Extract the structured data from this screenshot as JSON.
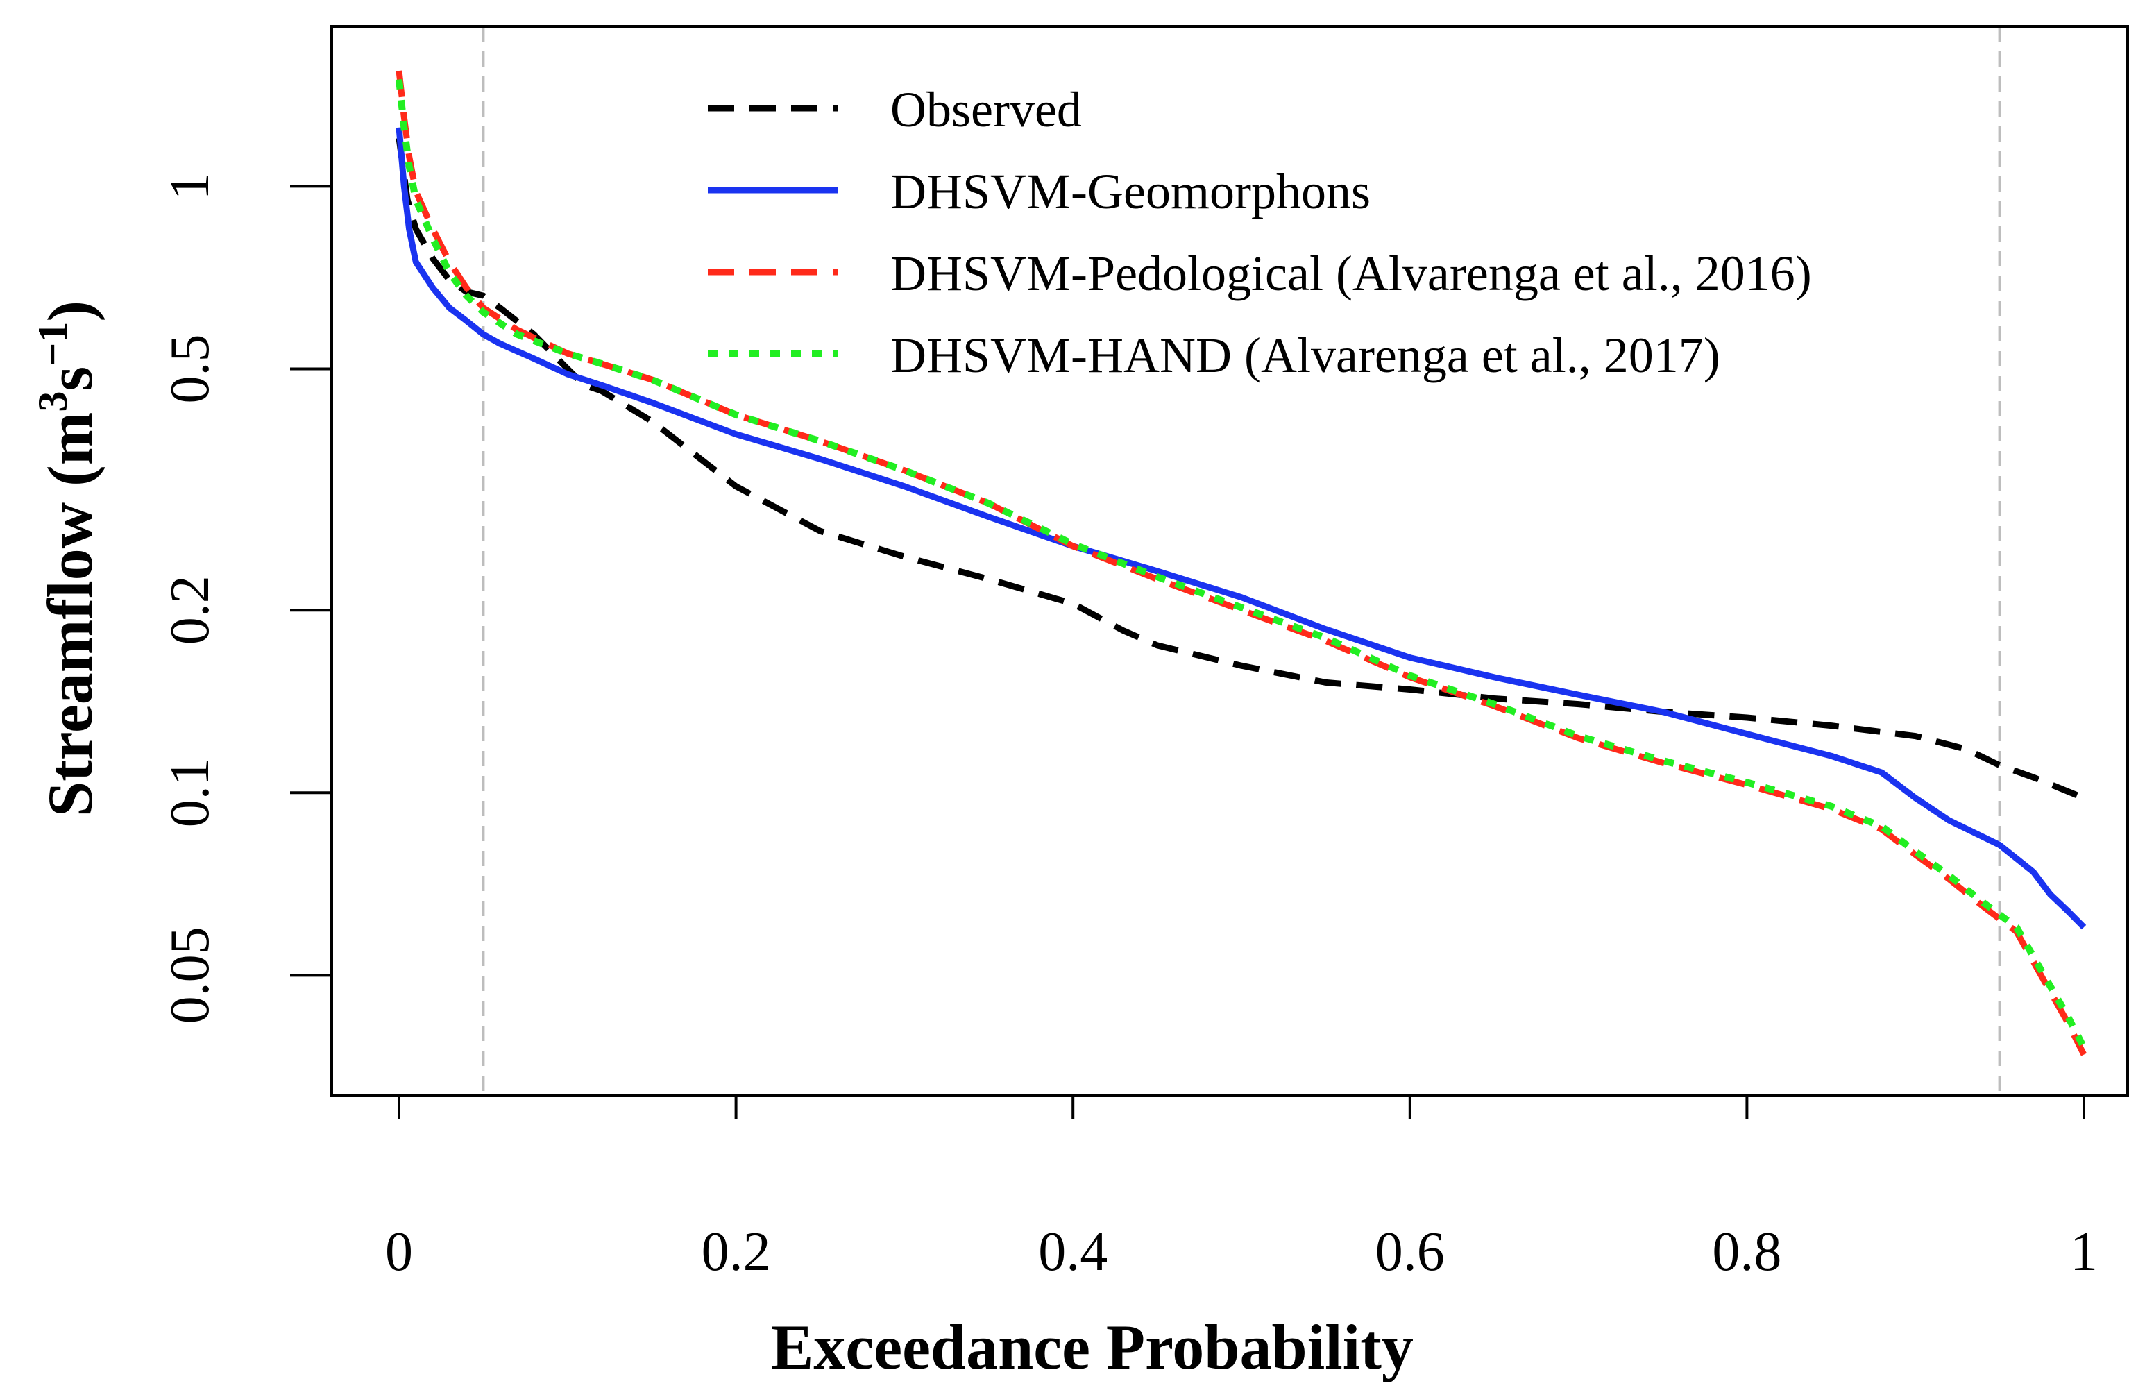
{
  "chart_data": {
    "type": "line",
    "title": "",
    "xlabel": "Exceedance Probability",
    "ylabel": {
      "main": "Streamflow (m",
      "sup1": "3",
      "mid": "s",
      "sup2": "−1",
      "end": ")"
    },
    "xlim": [
      0,
      1
    ],
    "ylim": [
      0.036,
      1.6
    ],
    "yscale": "log",
    "grid": false,
    "legend_position": "top-right",
    "xticks": [
      0,
      0.2,
      0.4,
      0.6,
      0.8,
      1
    ],
    "xtick_labels": [
      "0",
      "0.2",
      "0.4",
      "0.6",
      "0.8",
      "1"
    ],
    "yticks": [
      0.05,
      0.1,
      0.2,
      0.5,
      1
    ],
    "ytick_labels": [
      "0.05",
      "0.1",
      "0.2",
      "0.5",
      "1"
    ],
    "reference_lines_x": [
      0.05,
      0.95
    ],
    "series": [
      {
        "name": "Observed",
        "color": "#000000",
        "style": "dashed",
        "x": [
          0,
          0.005,
          0.01,
          0.02,
          0.03,
          0.04,
          0.05,
          0.06,
          0.08,
          0.1,
          0.11,
          0.12,
          0.15,
          0.2,
          0.25,
          0.3,
          0.35,
          0.4,
          0.43,
          0.45,
          0.5,
          0.55,
          0.6,
          0.65,
          0.7,
          0.75,
          0.8,
          0.85,
          0.9,
          0.93,
          0.95,
          0.97,
          1.0
        ],
        "y": [
          1.2,
          0.95,
          0.85,
          0.76,
          0.7,
          0.67,
          0.66,
          0.63,
          0.57,
          0.5,
          0.47,
          0.46,
          0.41,
          0.32,
          0.27,
          0.245,
          0.225,
          0.205,
          0.185,
          0.175,
          0.162,
          0.152,
          0.148,
          0.143,
          0.14,
          0.136,
          0.133,
          0.129,
          0.124,
          0.118,
          0.111,
          0.106,
          0.098
        ]
      },
      {
        "name": "DHSVM-Geomorphons",
        "color": "#1a33f0",
        "style": "solid",
        "x": [
          0,
          0.003,
          0.006,
          0.01,
          0.02,
          0.03,
          0.04,
          0.05,
          0.06,
          0.08,
          0.1,
          0.12,
          0.15,
          0.2,
          0.25,
          0.3,
          0.35,
          0.4,
          0.45,
          0.5,
          0.55,
          0.6,
          0.65,
          0.7,
          0.75,
          0.8,
          0.85,
          0.88,
          0.9,
          0.92,
          0.95,
          0.97,
          0.98,
          0.99,
          1.0
        ],
        "y": [
          1.25,
          1.0,
          0.85,
          0.75,
          0.68,
          0.63,
          0.6,
          0.57,
          0.55,
          0.52,
          0.49,
          0.47,
          0.44,
          0.39,
          0.355,
          0.32,
          0.285,
          0.255,
          0.232,
          0.21,
          0.186,
          0.167,
          0.155,
          0.145,
          0.136,
          0.125,
          0.115,
          0.108,
          0.098,
          0.09,
          0.082,
          0.074,
          0.068,
          0.064,
          0.06
        ]
      },
      {
        "name": "DHSVM-Pedological (Alvarenga et al., 2016)",
        "color": "#ff2a1a",
        "style": "dashed",
        "x": [
          0,
          0.003,
          0.006,
          0.01,
          0.02,
          0.03,
          0.04,
          0.05,
          0.07,
          0.1,
          0.12,
          0.15,
          0.2,
          0.25,
          0.3,
          0.35,
          0.4,
          0.45,
          0.5,
          0.55,
          0.6,
          0.65,
          0.7,
          0.75,
          0.8,
          0.85,
          0.88,
          0.9,
          0.92,
          0.94,
          0.96,
          0.98,
          0.99,
          1.0
        ],
        "y": [
          1.55,
          1.3,
          1.12,
          0.98,
          0.85,
          0.75,
          0.68,
          0.63,
          0.58,
          0.53,
          0.51,
          0.48,
          0.42,
          0.38,
          0.34,
          0.3,
          0.255,
          0.225,
          0.2,
          0.178,
          0.155,
          0.139,
          0.123,
          0.112,
          0.103,
          0.094,
          0.087,
          0.079,
          0.072,
          0.065,
          0.059,
          0.047,
          0.042,
          0.037
        ]
      },
      {
        "name": "DHSVM-HAND (Alvarenga et al., 2017)",
        "color": "#22ee22",
        "style": "dotted",
        "x": [
          0,
          0.003,
          0.006,
          0.01,
          0.02,
          0.03,
          0.04,
          0.05,
          0.07,
          0.1,
          0.12,
          0.15,
          0.2,
          0.25,
          0.3,
          0.35,
          0.4,
          0.45,
          0.5,
          0.55,
          0.6,
          0.65,
          0.7,
          0.75,
          0.8,
          0.85,
          0.88,
          0.9,
          0.92,
          0.94,
          0.96,
          0.98,
          0.99,
          1.0
        ],
        "y": [
          1.5,
          1.25,
          1.08,
          0.95,
          0.82,
          0.72,
          0.66,
          0.62,
          0.57,
          0.53,
          0.51,
          0.48,
          0.42,
          0.38,
          0.34,
          0.3,
          0.257,
          0.227,
          0.202,
          0.18,
          0.156,
          0.14,
          0.124,
          0.113,
          0.104,
          0.095,
          0.088,
          0.08,
          0.073,
          0.066,
          0.06,
          0.048,
          0.043,
          0.038
        ]
      }
    ]
  }
}
